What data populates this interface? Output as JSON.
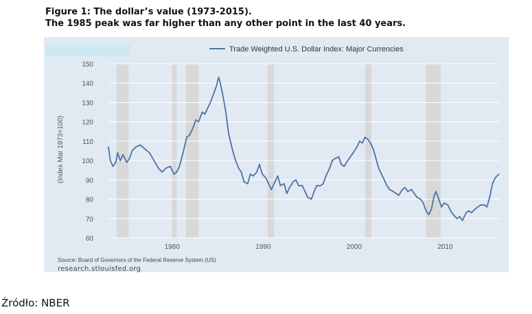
{
  "title": {
    "line1": "Figure 1: The dollar’s value (1973-2015).",
    "line2": "The 1985 peak was far higher than any other point in the last 40 years."
  },
  "footer": {
    "source": "Source: Board of Governors of the Federal Reserve System (US)",
    "site": "research.stlouisfed.org",
    "credit": "Źródło: NBER"
  },
  "colors": {
    "line": "#4a72a6",
    "recession": "#d8d8d8",
    "panel": "#e1e9f3",
    "grid": "#ffffff"
  },
  "chart_data": {
    "type": "line",
    "title": "Trade Weighted U.S. Dollar Index: Major Currencies",
    "ylabel": "(Index Mar 1973=100)",
    "xlabel": "",
    "xlim": [
      1973.0,
      2016.0
    ],
    "ylim": [
      60,
      150
    ],
    "yticks": [
      60,
      70,
      80,
      90,
      100,
      110,
      120,
      130,
      140,
      150
    ],
    "xticks": [
      1980,
      1990,
      2000,
      2010
    ],
    "grid": true,
    "legend_position": "top",
    "recessions": [
      [
        1973.9,
        1975.2
      ],
      [
        1980.0,
        1980.5
      ],
      [
        1981.5,
        1982.9
      ],
      [
        1990.5,
        1991.2
      ],
      [
        2001.2,
        2001.9
      ],
      [
        2007.9,
        2009.5
      ]
    ],
    "series": [
      {
        "name": "Trade Weighted U.S. Dollar Index: Major Currencies",
        "x": [
          1973.0,
          1973.2,
          1973.5,
          1973.8,
          1974.0,
          1974.3,
          1974.6,
          1975.0,
          1975.3,
          1975.6,
          1976.0,
          1976.5,
          1977.0,
          1977.5,
          1978.0,
          1978.5,
          1978.9,
          1979.3,
          1979.8,
          1980.2,
          1980.5,
          1980.8,
          1981.2,
          1981.6,
          1981.9,
          1982.3,
          1982.6,
          1982.9,
          1983.3,
          1983.6,
          1983.9,
          1984.2,
          1984.6,
          1984.9,
          1985.1,
          1985.3,
          1985.6,
          1985.9,
          1986.2,
          1986.6,
          1986.9,
          1987.3,
          1987.6,
          1987.9,
          1988.3,
          1988.6,
          1988.9,
          1989.3,
          1989.6,
          1989.9,
          1990.3,
          1990.6,
          1990.9,
          1991.3,
          1991.6,
          1991.9,
          1992.3,
          1992.6,
          1992.9,
          1993.3,
          1993.6,
          1993.9,
          1994.3,
          1994.6,
          1994.9,
          1995.3,
          1995.6,
          1995.9,
          1996.3,
          1996.6,
          1996.9,
          1997.3,
          1997.6,
          1997.9,
          1998.3,
          1998.6,
          1998.9,
          1999.3,
          1999.6,
          1999.9,
          2000.3,
          2000.6,
          2000.9,
          2001.2,
          2001.5,
          2001.8,
          2002.1,
          2002.4,
          2002.7,
          2003.0,
          2003.3,
          2003.6,
          2003.9,
          2004.3,
          2004.6,
          2004.9,
          2005.3,
          2005.6,
          2005.9,
          2006.3,
          2006.6,
          2006.9,
          2007.3,
          2007.6,
          2007.9,
          2008.2,
          2008.5,
          2008.8,
          2009.0,
          2009.3,
          2009.6,
          2009.9,
          2010.3,
          2010.6,
          2010.9,
          2011.3,
          2011.6,
          2011.9,
          2012.3,
          2012.6,
          2012.9,
          2013.3,
          2013.6,
          2013.9,
          2014.3,
          2014.6,
          2014.9,
          2015.2,
          2015.5,
          2015.9
        ],
        "values": [
          107,
          100,
          97,
          99,
          104,
          100,
          103,
          99,
          101,
          105,
          107,
          108,
          106,
          104,
          100,
          96,
          94,
          96,
          97,
          93,
          94,
          97,
          104,
          112,
          113,
          117,
          121,
          120,
          125,
          124,
          127,
          130,
          135,
          139,
          143,
          140,
          133,
          125,
          114,
          106,
          101,
          96,
          94,
          89,
          88,
          93,
          92,
          94,
          98,
          93,
          91,
          88,
          85,
          89,
          92,
          87,
          88,
          83,
          86,
          89,
          90,
          87,
          87,
          84,
          81,
          80,
          84,
          87,
          87,
          88,
          92,
          96,
          100,
          101,
          102,
          98,
          97,
          100,
          102,
          104,
          107,
          110,
          109,
          112,
          111,
          109,
          106,
          101,
          96,
          93,
          90,
          87,
          85,
          84,
          83,
          82,
          85,
          86,
          84,
          85,
          83,
          81,
          80,
          78,
          74,
          72,
          75,
          82,
          84,
          80,
          76,
          78,
          77,
          74,
          72,
          70,
          71,
          69,
          73,
          74,
          73,
          75,
          76,
          77,
          77,
          76,
          81,
          88,
          91,
          93
        ]
      }
    ]
  }
}
